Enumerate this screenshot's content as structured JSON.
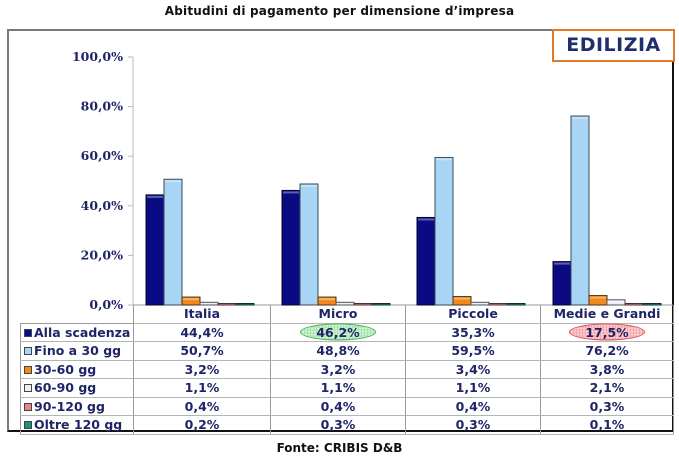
{
  "title": "Abitudini di pagamento per dimensione d’impresa",
  "badge": "EDILIZIA",
  "source": "Fonte: CRIBIS D&B",
  "highlights": [
    {
      "category": "Micro",
      "series": "Alla scadenza",
      "color": "#5cc46c"
    },
    {
      "category": "Medie e Grandi",
      "series": "Alla scadenza",
      "color": "#e6505a"
    }
  ],
  "chart_data": {
    "type": "bar",
    "title": "Abitudini di pagamento per dimensione d’impresa",
    "xlabel": "",
    "ylabel": "",
    "ylim": [
      0,
      100
    ],
    "yticks": [
      "0,0%",
      "20,0%",
      "40,0%",
      "60,0%",
      "80,0%",
      "100,0%"
    ],
    "ytick_values": [
      0,
      20,
      40,
      60,
      80,
      100
    ],
    "categories": [
      "Italia",
      "Micro",
      "Piccole",
      "Medie e Grandi"
    ],
    "legend_position": "table-left",
    "grid": false,
    "series": [
      {
        "name": "Alla scadenza",
        "color": "#0a0a82",
        "values": [
          44.4,
          46.2,
          35.3,
          17.5
        ],
        "labels": [
          "44,4%",
          "46,2%",
          "35,3%",
          "17,5%"
        ]
      },
      {
        "name": "Fino a 30 gg",
        "color": "#a8d4f6",
        "values": [
          50.7,
          48.8,
          59.5,
          76.2
        ],
        "labels": [
          "50,7%",
          "48,8%",
          "59,5%",
          "76,2%"
        ]
      },
      {
        "name": "30-60 gg",
        "color": "#f08a1c",
        "values": [
          3.2,
          3.2,
          3.4,
          3.8
        ],
        "labels": [
          "3,2%",
          "3,2%",
          "3,4%",
          "3,8%"
        ]
      },
      {
        "name": "60-90 gg",
        "color": "#eceef8",
        "values": [
          1.1,
          1.1,
          1.1,
          2.1
        ],
        "labels": [
          "1,1%",
          "1,1%",
          "1,1%",
          "2,1%"
        ]
      },
      {
        "name": "90-120 gg",
        "color": "#e7848a",
        "values": [
          0.4,
          0.4,
          0.4,
          0.3
        ],
        "labels": [
          "0,4%",
          "0,4%",
          "0,4%",
          "0,3%"
        ]
      },
      {
        "name": "Oltre 120 gg",
        "color": "#1f8f7a",
        "values": [
          0.2,
          0.3,
          0.3,
          0.1
        ],
        "labels": [
          "0,2%",
          "0,3%",
          "0,3%",
          "0,1%"
        ]
      }
    ]
  }
}
